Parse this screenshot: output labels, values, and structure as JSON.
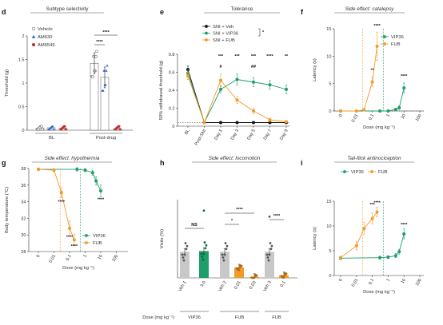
{
  "colors": {
    "vehicle": "#777777",
    "am630": "#2a5fd6",
    "am6545": "#c22b2b",
    "sni_veh": "#111111",
    "vip36": "#1e9e68",
    "fub": "#f39a2b",
    "bar_grey": "#c8c8c8"
  },
  "chart_data": [
    {
      "panel": "d",
      "type": "bar",
      "title": "Subtype selectivity",
      "ylabel": "Threshold (g)",
      "ylim": [
        0,
        2
      ],
      "yticks": [
        0,
        0.5,
        1,
        1.5,
        2
      ],
      "groups": [
        "BL",
        "Post-drug"
      ],
      "legend": [
        "Vehicle",
        "AM630",
        "AM6545"
      ],
      "series": [
        {
          "name": "Vehicle",
          "values": [
            0.04,
            1.42
          ]
        },
        {
          "name": "AM630",
          "values": [
            0.05,
            1.12
          ]
        },
        {
          "name": "AM6545",
          "values": [
            0.04,
            0.03
          ]
        }
      ],
      "sig": [
        "****",
        "****"
      ]
    },
    {
      "panel": "e",
      "type": "line",
      "title": "Tolerance",
      "ylabel": "50% withdrawal threshold (g)",
      "ylim": [
        0,
        0.8
      ],
      "yticks": [
        0,
        0.2,
        0.4,
        0.6,
        0.8
      ],
      "categories": [
        "BL",
        "Post-SNI",
        "Day 1",
        "Day 3",
        "Day 5",
        "Day 7",
        "Day 9"
      ],
      "legend": [
        "SNI + Veh",
        "SNI + VIP36",
        "SNI + FUB"
      ],
      "series": [
        {
          "name": "SNI + Veh",
          "values": [
            0.63,
            0.04,
            0.04,
            0.04,
            0.04,
            0.04,
            0.04
          ]
        },
        {
          "name": "SNI + VIP36",
          "values": [
            0.59,
            0.04,
            0.41,
            0.52,
            0.49,
            0.46,
            0.41
          ]
        },
        {
          "name": "SNI + FUB",
          "values": [
            0.56,
            0.04,
            0.51,
            0.29,
            0.17,
            0.07,
            0.05
          ]
        }
      ],
      "sig_top": [
        "***",
        "***",
        "***",
        "****",
        "**"
      ],
      "sig_mid": [
        "#",
        "##"
      ],
      "legend_sig": "*"
    },
    {
      "panel": "f",
      "type": "line",
      "title": "Side effect: catalepsy",
      "ylabel": "Latency (s)",
      "xlabel": "Dose (mg kg⁻¹)",
      "ylim": [
        0,
        15
      ],
      "yticks": [
        0,
        5,
        10,
        15
      ],
      "xticks": [
        "0",
        "0.01",
        "0.1",
        "1",
        "10",
        "100"
      ],
      "series": [
        {
          "name": "VIP36",
          "x": [
            0,
            0.3,
            1,
            3,
            5,
            10
          ],
          "y": [
            0,
            0,
            0,
            0.3,
            0.6,
            4.2
          ]
        },
        {
          "name": "FUB",
          "x": [
            0,
            0.01,
            0.03,
            0.1,
            0.2
          ],
          "y": [
            0,
            0,
            0.2,
            5.3,
            11.8
          ]
        }
      ],
      "sig": [
        "**",
        "****",
        "****"
      ]
    },
    {
      "panel": "g",
      "type": "line",
      "title": "Side effect: hypothermia",
      "ylabel": "Body temperature (°C)",
      "xlabel": "Dose (mg kg⁻¹)",
      "ylim": [
        28,
        38
      ],
      "yticks": [
        28,
        30,
        32,
        34,
        36,
        38
      ],
      "xticks": [
        "0",
        "0.01",
        "0.1",
        "1",
        "10",
        "100"
      ],
      "series": [
        {
          "name": "VIP36",
          "x": [
            0,
            0.3,
            1,
            3,
            5,
            10
          ],
          "y": [
            37.9,
            37.9,
            37.8,
            37.5,
            36.5,
            35.3
          ]
        },
        {
          "name": "FUB",
          "x": [
            0,
            0.01,
            0.03,
            0.1,
            0.2
          ],
          "y": [
            37.9,
            37.8,
            35.1,
            30.8,
            29.4
          ]
        }
      ],
      "sig": [
        "****",
        "****",
        "****",
        "****"
      ]
    },
    {
      "panel": "h",
      "type": "bar",
      "title": "Side effect: locomotion",
      "ylabel": "Visits (%)",
      "ylim": [
        0,
        300
      ],
      "categories": [
        "Veh 1",
        "3.0",
        "Veh 2",
        "0.01",
        "0.03",
        "Veh 3",
        "0.1"
      ],
      "group_labels": [
        "VIP36",
        "FUB",
        "FUB"
      ],
      "dose_label": "Dose (mg kg⁻¹)",
      "values": [
        100,
        103,
        100,
        40,
        4,
        100,
        10
      ],
      "sig": [
        "NS",
        "*",
        "****",
        "****"
      ]
    },
    {
      "panel": "i",
      "type": "line",
      "title": "Tail-flick antinociception",
      "ylabel": "Latency (s)",
      "xlabel": "Dose (mg kg⁻¹)",
      "ylim": [
        0,
        15
      ],
      "yticks": [
        0,
        5,
        10,
        15
      ],
      "xticks": [
        "0",
        "0.01",
        "0.1",
        "1",
        "10",
        "100"
      ],
      "series": [
        {
          "name": "VIP36",
          "x": [
            0,
            0.3,
            1,
            3,
            5,
            10
          ],
          "y": [
            3.5,
            3.6,
            3.7,
            4.0,
            4.8,
            8.4
          ]
        },
        {
          "name": "FUB",
          "x": [
            0,
            0.01,
            0.03,
            0.1,
            0.2
          ],
          "y": [
            3.6,
            6.0,
            9.5,
            11.5,
            12.8
          ]
        }
      ],
      "sig": [
        "***",
        "****",
        "****"
      ]
    }
  ]
}
